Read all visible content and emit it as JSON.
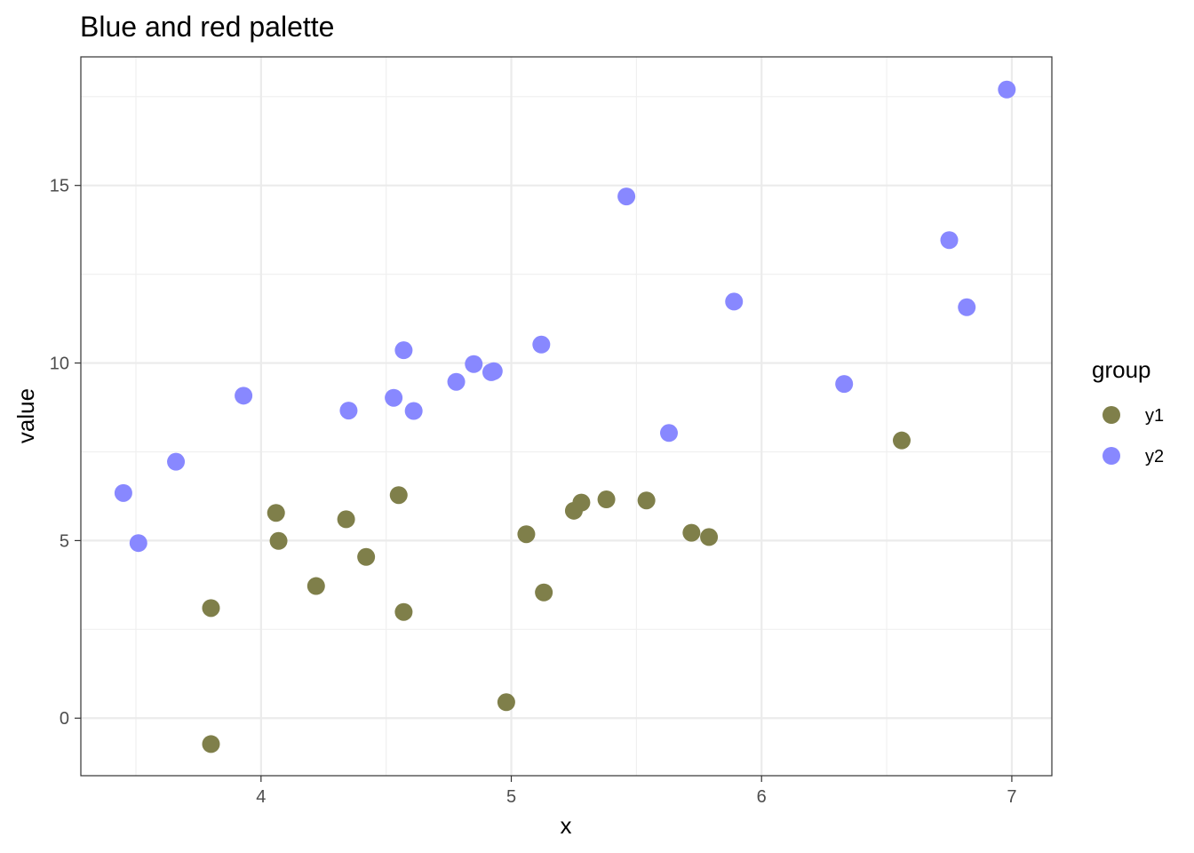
{
  "chart_data": {
    "type": "scatter",
    "title": "Blue and red palette",
    "xlabel": "x",
    "ylabel": "value",
    "xlim": [
      3.28,
      7.16
    ],
    "ylim": [
      -1.62,
      18.62
    ],
    "x_ticks": [
      4,
      5,
      6,
      7
    ],
    "y_ticks": [
      0,
      5,
      10,
      15
    ],
    "x_tick_labels": [
      "4",
      "5",
      "6",
      "7"
    ],
    "y_tick_labels": [
      "0",
      "5",
      "10",
      "15"
    ],
    "grid": true,
    "legend": {
      "title": "group",
      "position": "right"
    },
    "series": [
      {
        "name": "y1",
        "color": "#7f7f4a",
        "points": [
          [
            3.8,
            3.1
          ],
          [
            3.8,
            -0.73
          ],
          [
            4.06,
            5.78
          ],
          [
            4.07,
            4.99
          ],
          [
            4.22,
            3.72
          ],
          [
            4.34,
            5.6
          ],
          [
            4.42,
            4.54
          ],
          [
            4.55,
            6.28
          ],
          [
            4.57,
            2.99
          ],
          [
            4.98,
            0.45
          ],
          [
            5.06,
            5.18
          ],
          [
            5.13,
            3.54
          ],
          [
            5.25,
            5.84
          ],
          [
            5.28,
            6.07
          ],
          [
            5.38,
            6.16
          ],
          [
            5.54,
            6.13
          ],
          [
            5.72,
            5.22
          ],
          [
            5.79,
            5.1
          ],
          [
            6.56,
            7.82
          ]
        ]
      },
      {
        "name": "y2",
        "color": "#8888ff",
        "points": [
          [
            3.45,
            6.34
          ],
          [
            3.51,
            4.93
          ],
          [
            3.66,
            7.22
          ],
          [
            3.93,
            9.08
          ],
          [
            4.35,
            8.66
          ],
          [
            4.53,
            9.02
          ],
          [
            4.57,
            10.36
          ],
          [
            4.61,
            8.65
          ],
          [
            4.78,
            9.47
          ],
          [
            4.85,
            9.97
          ],
          [
            4.92,
            9.74
          ],
          [
            4.93,
            9.77
          ],
          [
            5.12,
            10.52
          ],
          [
            5.46,
            14.69
          ],
          [
            5.63,
            8.03
          ],
          [
            5.89,
            11.73
          ],
          [
            6.33,
            9.41
          ],
          [
            6.75,
            13.46
          ],
          [
            6.82,
            11.57
          ],
          [
            6.98,
            17.7
          ]
        ]
      }
    ]
  }
}
